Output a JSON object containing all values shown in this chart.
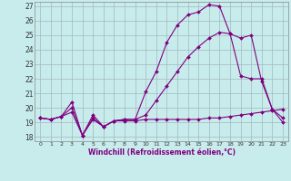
{
  "xlabel": "Windchill (Refroidissement éolien,°C)",
  "background_color": "#c8ecec",
  "line_color": "#800080",
  "grid_color": "#a0b8c0",
  "xlim": [
    -0.5,
    23.5
  ],
  "ylim": [
    17.7,
    27.3
  ],
  "xticks": [
    0,
    1,
    2,
    3,
    4,
    5,
    6,
    7,
    8,
    9,
    10,
    11,
    12,
    13,
    14,
    15,
    16,
    17,
    18,
    19,
    20,
    21,
    22,
    23
  ],
  "yticks": [
    18,
    19,
    20,
    21,
    22,
    23,
    24,
    25,
    26,
    27
  ],
  "line1_x": [
    0,
    1,
    2,
    3,
    4,
    5,
    6,
    7,
    8,
    9,
    10,
    11,
    12,
    13,
    14,
    15,
    16,
    17,
    18,
    19,
    20,
    21,
    22,
    23
  ],
  "line1_y": [
    19.3,
    19.2,
    19.4,
    19.7,
    18.1,
    19.2,
    18.7,
    19.1,
    19.1,
    19.1,
    19.2,
    19.2,
    19.2,
    19.2,
    19.2,
    19.2,
    19.3,
    19.3,
    19.4,
    19.5,
    19.6,
    19.7,
    19.8,
    19.9
  ],
  "line2_x": [
    0,
    1,
    2,
    3,
    4,
    5,
    6,
    7,
    8,
    9,
    10,
    11,
    12,
    13,
    14,
    15,
    16,
    17,
    18,
    19,
    20,
    21,
    22,
    23
  ],
  "line2_y": [
    19.3,
    19.2,
    19.4,
    20.4,
    18.1,
    19.5,
    18.7,
    19.1,
    19.2,
    19.2,
    21.1,
    22.5,
    24.5,
    25.7,
    26.4,
    26.6,
    27.1,
    27.0,
    25.1,
    22.2,
    22.0,
    22.0,
    19.9,
    19.0
  ],
  "line3_x": [
    0,
    1,
    2,
    3,
    4,
    5,
    6,
    7,
    8,
    9,
    10,
    11,
    12,
    13,
    14,
    15,
    16,
    17,
    18,
    19,
    20,
    21,
    22,
    23
  ],
  "line3_y": [
    19.3,
    19.2,
    19.4,
    20.0,
    18.1,
    19.3,
    18.7,
    19.1,
    19.2,
    19.2,
    19.5,
    20.5,
    21.5,
    22.5,
    23.5,
    24.2,
    24.8,
    25.2,
    25.1,
    24.8,
    25.0,
    21.8,
    19.9,
    19.3
  ]
}
